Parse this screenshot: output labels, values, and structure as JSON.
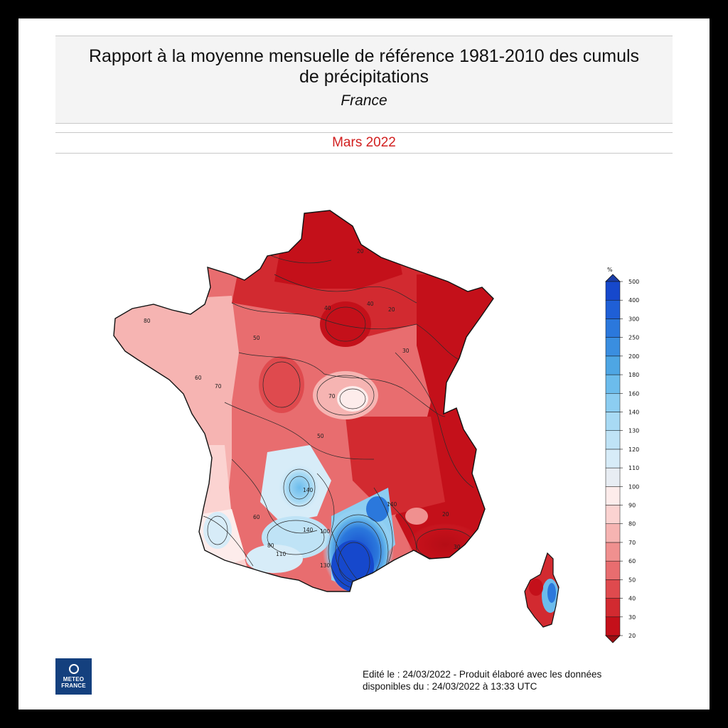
{
  "header": {
    "title_line1": "Rapport à la moyenne mensuelle de référence 1981-2010 des cumuls",
    "title_line2": "de précipitations",
    "subtitle": "France",
    "period": "Mars 2022"
  },
  "legend": {
    "unit": "%",
    "levels": [
      20,
      30,
      40,
      50,
      60,
      70,
      80,
      90,
      100,
      110,
      120,
      130,
      140,
      160,
      180,
      200,
      250,
      300,
      400,
      500
    ],
    "colors": [
      "#c4101a",
      "#d22a30",
      "#df4a4e",
      "#e86d6f",
      "#f0908f",
      "#f6b4b2",
      "#fbd3d1",
      "#fdeceb",
      "#e8edf3",
      "#d7ecf8",
      "#bfe3f6",
      "#a8daf4",
      "#8ccdf1",
      "#6cbcec",
      "#4ea6e4",
      "#3a8ee0",
      "#2b78dc",
      "#1f5fd6",
      "#1648cc"
    ],
    "low_color": "#9b0d12",
    "high_color": "#1a3ea8"
  },
  "map": {
    "contour_labels": [
      "20",
      "20",
      "30",
      "40",
      "40",
      "50",
      "50",
      "60",
      "60",
      "70",
      "70",
      "80",
      "80",
      "100",
      "110",
      "130",
      "140",
      "140",
      "140",
      "20",
      "30"
    ]
  },
  "logo": {
    "line1": "METEO",
    "line2": "FRANCE"
  },
  "footer": {
    "line1": "Edité le : 24/03/2022 - Produit élaboré avec les données",
    "line2": "disponibles du : 24/03/2022 à 13:33 UTC"
  }
}
